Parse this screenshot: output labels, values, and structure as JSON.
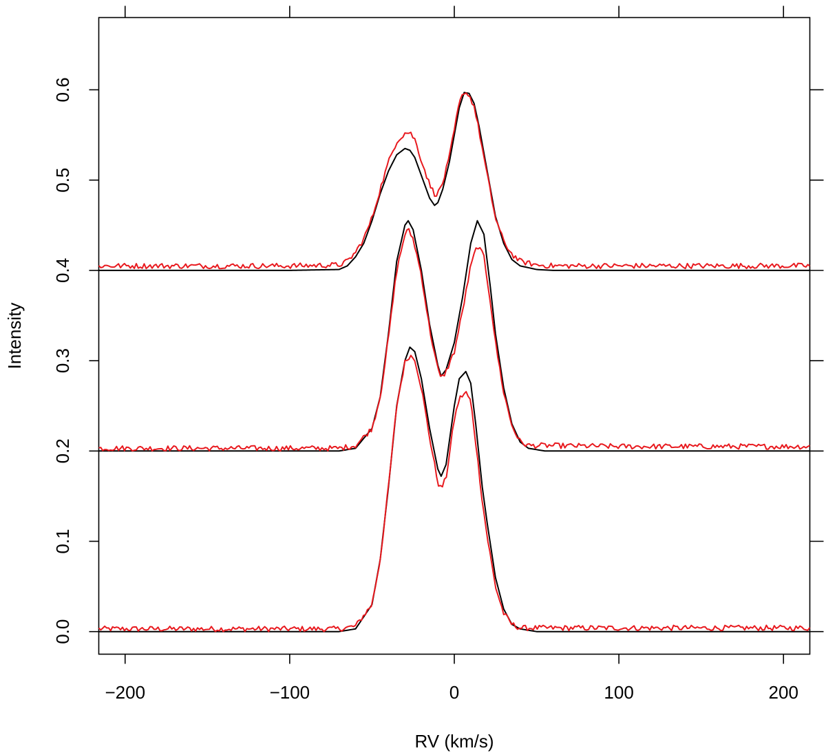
{
  "chart_data": {
    "type": "line",
    "xlabel": "RV (km/s)",
    "ylabel": "Intensity",
    "xlim": [
      -216,
      216
    ],
    "ylim": [
      -0.025,
      0.68
    ],
    "x_ticks": [
      -200,
      -100,
      0,
      100,
      200
    ],
    "x_tick_labels": [
      "−200",
      "−100",
      "0",
      "100",
      "200"
    ],
    "y_ticks": [
      0.0,
      0.1,
      0.2,
      0.3,
      0.4,
      0.5,
      0.6
    ],
    "y_tick_labels": [
      "0.0",
      "0.1",
      "0.2",
      "0.3",
      "0.4",
      "0.5",
      "0.6"
    ],
    "grid": false,
    "box": true,
    "ticks_on_all_sides": true,
    "colors": {
      "model": "#000000",
      "observed": "#e8191e"
    },
    "series": [
      {
        "role": "model",
        "color": "#000000",
        "offset": 0.0,
        "x": [
          -216,
          -100,
          -70,
          -60,
          -50,
          -45,
          -40,
          -35,
          -30,
          -27,
          -24,
          -20,
          -15,
          -10,
          -8,
          -5,
          0,
          3,
          7,
          10,
          13,
          17,
          20,
          25,
          30,
          35,
          40,
          50,
          60,
          100,
          216
        ],
        "y": [
          0.0,
          0.0,
          0.0,
          0.003,
          0.03,
          0.08,
          0.16,
          0.25,
          0.3,
          0.315,
          0.31,
          0.28,
          0.225,
          0.18,
          0.172,
          0.185,
          0.25,
          0.28,
          0.288,
          0.275,
          0.23,
          0.16,
          0.12,
          0.06,
          0.025,
          0.008,
          0.003,
          0.0,
          0.0,
          0.0,
          0.0
        ]
      },
      {
        "role": "observed",
        "color": "#e8191e",
        "offset": 0.0,
        "x": [
          -216,
          -100,
          -70,
          -60,
          -50,
          -45,
          -40,
          -35,
          -30,
          -27,
          -24,
          -20,
          -15,
          -10,
          -8,
          -5,
          0,
          3,
          7,
          10,
          13,
          17,
          20,
          25,
          30,
          35,
          40,
          50,
          60,
          100,
          216
        ],
        "y": [
          0.003,
          0.003,
          0.003,
          0.006,
          0.03,
          0.08,
          0.16,
          0.25,
          0.298,
          0.306,
          0.302,
          0.27,
          0.215,
          0.165,
          0.158,
          0.17,
          0.235,
          0.258,
          0.265,
          0.255,
          0.21,
          0.145,
          0.105,
          0.05,
          0.02,
          0.008,
          0.004,
          0.004,
          0.004,
          0.004,
          0.004
        ]
      },
      {
        "role": "model",
        "color": "#000000",
        "offset": 0.2,
        "x": [
          -216,
          -100,
          -70,
          -60,
          -50,
          -45,
          -40,
          -35,
          -30,
          -28,
          -25,
          -20,
          -15,
          -10,
          -8,
          -5,
          0,
          5,
          10,
          14,
          18,
          22,
          25,
          30,
          35,
          40,
          45,
          55,
          100,
          216
        ],
        "y": [
          0.2,
          0.2,
          0.2,
          0.203,
          0.225,
          0.26,
          0.33,
          0.41,
          0.45,
          0.455,
          0.445,
          0.4,
          0.34,
          0.295,
          0.283,
          0.29,
          0.32,
          0.37,
          0.43,
          0.455,
          0.44,
          0.38,
          0.33,
          0.27,
          0.23,
          0.21,
          0.203,
          0.2,
          0.2,
          0.2
        ]
      },
      {
        "role": "observed",
        "color": "#e8191e",
        "offset": 0.2,
        "x": [
          -216,
          -100,
          -70,
          -60,
          -50,
          -45,
          -40,
          -35,
          -30,
          -28,
          -25,
          -20,
          -15,
          -10,
          -8,
          -5,
          0,
          5,
          10,
          14,
          18,
          22,
          25,
          30,
          35,
          40,
          45,
          55,
          100,
          216
        ],
        "y": [
          0.203,
          0.203,
          0.203,
          0.206,
          0.225,
          0.26,
          0.325,
          0.4,
          0.44,
          0.445,
          0.435,
          0.395,
          0.335,
          0.29,
          0.28,
          0.288,
          0.31,
          0.355,
          0.405,
          0.428,
          0.415,
          0.365,
          0.32,
          0.265,
          0.228,
          0.21,
          0.206,
          0.206,
          0.205,
          0.205
        ]
      },
      {
        "role": "model",
        "color": "#000000",
        "offset": 0.4,
        "x": [
          -216,
          -100,
          -70,
          -65,
          -60,
          -55,
          -50,
          -45,
          -40,
          -35,
          -30,
          -27,
          -24,
          -20,
          -15,
          -12,
          -10,
          -7,
          -3,
          0,
          3,
          6,
          9,
          12,
          15,
          20,
          25,
          30,
          35,
          40,
          50,
          60,
          100,
          216
        ],
        "y": [
          0.4,
          0.4,
          0.401,
          0.405,
          0.415,
          0.43,
          0.455,
          0.485,
          0.51,
          0.528,
          0.535,
          0.533,
          0.525,
          0.505,
          0.48,
          0.472,
          0.475,
          0.49,
          0.52,
          0.55,
          0.58,
          0.597,
          0.596,
          0.585,
          0.56,
          0.51,
          0.46,
          0.43,
          0.412,
          0.405,
          0.401,
          0.4,
          0.4,
          0.4
        ]
      },
      {
        "role": "observed",
        "color": "#e8191e",
        "offset": 0.4,
        "x": [
          -216,
          -100,
          -70,
          -65,
          -60,
          -55,
          -50,
          -45,
          -40,
          -35,
          -30,
          -27,
          -24,
          -20,
          -15,
          -12,
          -10,
          -7,
          -3,
          0,
          3,
          6,
          9,
          12,
          15,
          20,
          25,
          30,
          35,
          40,
          50,
          60,
          100,
          216
        ],
        "y": [
          0.405,
          0.405,
          0.406,
          0.41,
          0.42,
          0.435,
          0.458,
          0.49,
          0.52,
          0.543,
          0.552,
          0.553,
          0.545,
          0.522,
          0.495,
          0.485,
          0.485,
          0.497,
          0.525,
          0.555,
          0.585,
          0.598,
          0.594,
          0.582,
          0.555,
          0.505,
          0.458,
          0.432,
          0.418,
          0.41,
          0.406,
          0.405,
          0.405,
          0.405
        ]
      }
    ]
  }
}
